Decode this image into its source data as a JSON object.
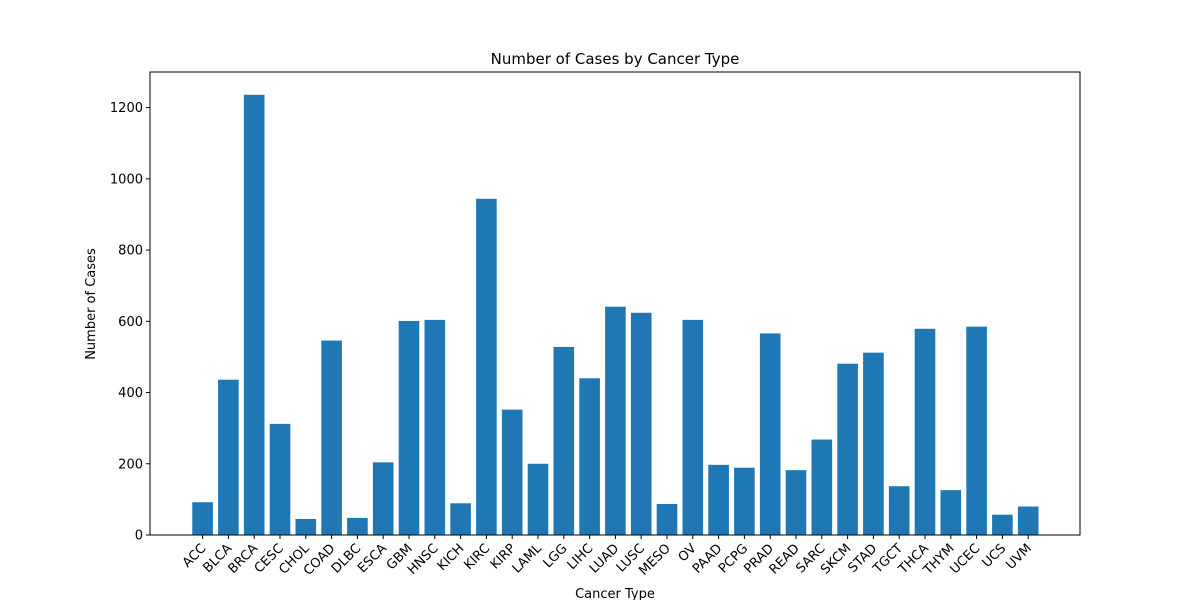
{
  "chart_data": {
    "type": "bar",
    "title": "Number of Cases by Cancer Type",
    "xlabel": "Cancer Type",
    "ylabel": "Number of Cases",
    "ylim": [
      0,
      1300
    ],
    "yticks": [
      0,
      200,
      400,
      600,
      800,
      1000,
      1200
    ],
    "categories": [
      "ACC",
      "BLCA",
      "BRCA",
      "CESC",
      "CHOL",
      "COAD",
      "DLBC",
      "ESCA",
      "GBM",
      "HNSC",
      "KICH",
      "KIRC",
      "KIRP",
      "LAML",
      "LGG",
      "LIHC",
      "LUAD",
      "LUSC",
      "MESO",
      "OV",
      "PAAD",
      "PCPG",
      "PRAD",
      "READ",
      "SARC",
      "SKCM",
      "STAD",
      "TGCT",
      "THCA",
      "THYM",
      "UCEC",
      "UCS",
      "UVM"
    ],
    "values": [
      92,
      436,
      1236,
      312,
      45,
      546,
      48,
      204,
      601,
      604,
      89,
      944,
      352,
      200,
      528,
      440,
      641,
      624,
      87,
      604,
      197,
      189,
      566,
      182,
      268,
      481,
      512,
      137,
      579,
      126,
      585,
      57,
      80
    ],
    "bar_color": "#1f77b4",
    "grid": false,
    "legend": "none"
  }
}
